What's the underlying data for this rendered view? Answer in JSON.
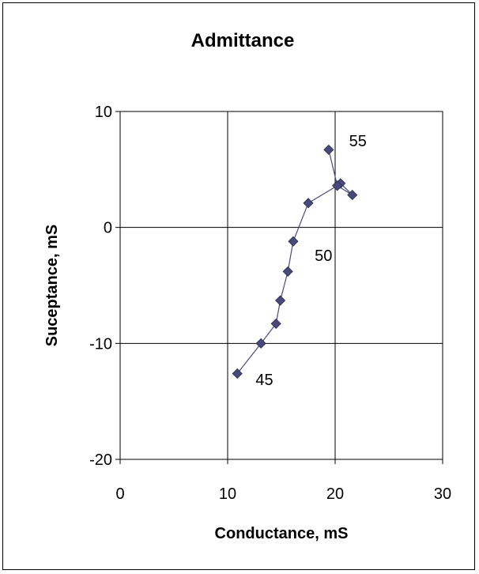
{
  "chart_data": {
    "type": "scatter",
    "title": "Admittance",
    "xlabel": "Conductance,  mS",
    "ylabel": "Suceptance,  mS",
    "xlim": [
      0,
      30
    ],
    "ylim": [
      -20,
      10
    ],
    "xticks": [
      0,
      10,
      20,
      30
    ],
    "yticks": [
      -20,
      -10,
      0,
      10
    ],
    "grid": true,
    "line_connected": true,
    "marker": "diamond",
    "marker_color": "#4a4a7a",
    "points": [
      {
        "x": 10.9,
        "y": -12.6
      },
      {
        "x": 13.1,
        "y": -10.0
      },
      {
        "x": 14.5,
        "y": -8.3
      },
      {
        "x": 14.9,
        "y": -6.3
      },
      {
        "x": 15.6,
        "y": -3.8
      },
      {
        "x": 16.1,
        "y": -1.2
      },
      {
        "x": 17.5,
        "y": 2.1
      },
      {
        "x": 20.2,
        "y": 3.6
      },
      {
        "x": 20.5,
        "y": 3.8
      },
      {
        "x": 21.6,
        "y": 2.8
      },
      {
        "x": 20.2,
        "y": 3.6
      },
      {
        "x": 19.4,
        "y": 6.7
      }
    ],
    "annotations": [
      {
        "text": "45",
        "x": 12.6,
        "y": -13.6
      },
      {
        "text": "50",
        "x": 18.1,
        "y": -2.9
      },
      {
        "text": "55",
        "x": 21.3,
        "y": 7.0
      }
    ]
  }
}
